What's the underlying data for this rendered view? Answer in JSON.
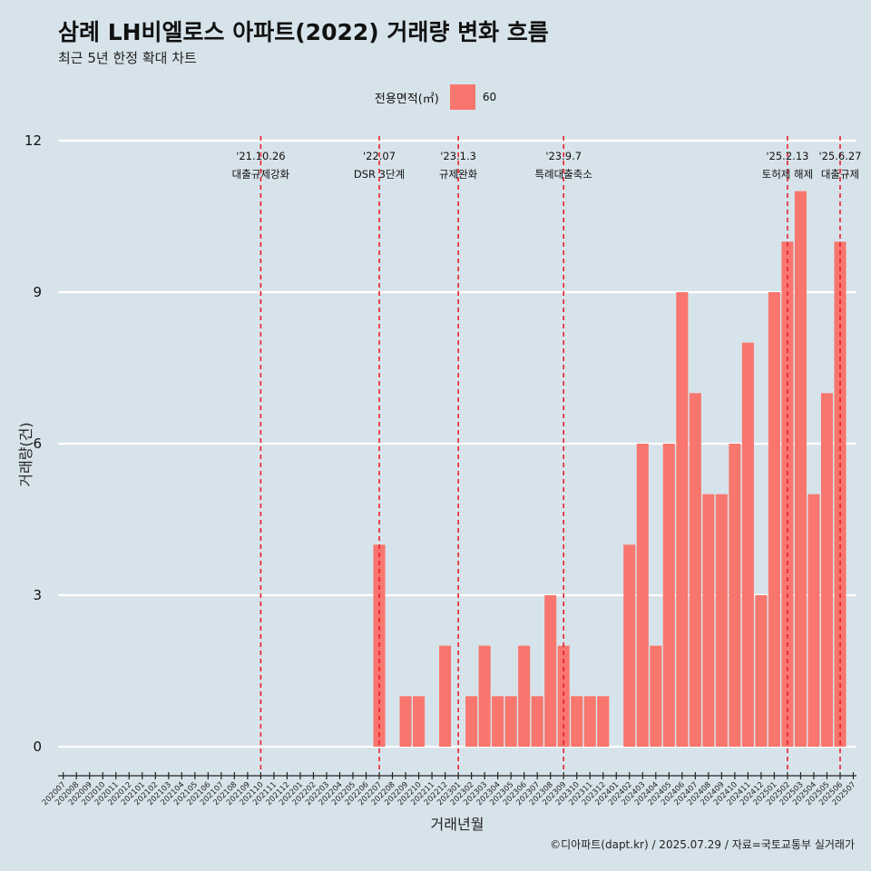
{
  "title": "삼례 LH비엘로스 아파트(2022) 거래량 변화 흐름",
  "subtitle": "최근 5년 한정 확대 차트",
  "caption": "©디아파트(dapt.kr) / 2025.07.29 / 자료=국토교통부 실거래가",
  "legend": {
    "title": "전용면적(㎡)",
    "item": "60",
    "color": "#f8766d"
  },
  "chart_data": {
    "type": "bar",
    "xlabel": "거래년월",
    "ylabel": "거래량(건)",
    "ylim": [
      0,
      12
    ],
    "yticks": [
      0,
      3,
      6,
      9,
      12
    ],
    "grid": true,
    "legend_position": "top",
    "bar_color": "#f8766d",
    "categories": [
      "202007",
      "202008",
      "202009",
      "202010",
      "202011",
      "202012",
      "202101",
      "202102",
      "202103",
      "202104",
      "202105",
      "202106",
      "202107",
      "202108",
      "202109",
      "202110",
      "202111",
      "202112",
      "202201",
      "202202",
      "202203",
      "202204",
      "202205",
      "202206",
      "202207",
      "202208",
      "202209",
      "202210",
      "202211",
      "202212",
      "202301",
      "202302",
      "202303",
      "202304",
      "202305",
      "202306",
      "202307",
      "202308",
      "202309",
      "202310",
      "202311",
      "202312",
      "202401",
      "202402",
      "202403",
      "202404",
      "202405",
      "202406",
      "202407",
      "202408",
      "202409",
      "202410",
      "202411",
      "202412",
      "202501",
      "202502",
      "202503",
      "202504",
      "202505",
      "202506",
      "202507"
    ],
    "series": [
      {
        "values": [
          0,
          0,
          0,
          0,
          0,
          0,
          0,
          0,
          0,
          0,
          0,
          0,
          0,
          0,
          0,
          0,
          0,
          0,
          0,
          0,
          0,
          0,
          0,
          0,
          4,
          0,
          1,
          1,
          0,
          2,
          0,
          1,
          2,
          1,
          1,
          2,
          1,
          3,
          2,
          1,
          1,
          1,
          0,
          4,
          6,
          2,
          6,
          9,
          7,
          5,
          5,
          6,
          8,
          3,
          9,
          10,
          11,
          5,
          7,
          10,
          0
        ]
      }
    ],
    "annotations": [
      {
        "date": "'21.10.26",
        "label": "대출규제강화",
        "category": "202110"
      },
      {
        "date": "'22.07",
        "label": "DSR 3단계",
        "category": "202207"
      },
      {
        "date": "'23.1.3",
        "label": "규제완화",
        "category": "202301"
      },
      {
        "date": "'23.9.7",
        "label": "특례대출축소",
        "category": "202309"
      },
      {
        "date": "'25.2.13",
        "label": "토허제 해제",
        "category": "202502"
      },
      {
        "date": "'25.6.27",
        "label": "대출규제",
        "category": "202506"
      }
    ]
  }
}
